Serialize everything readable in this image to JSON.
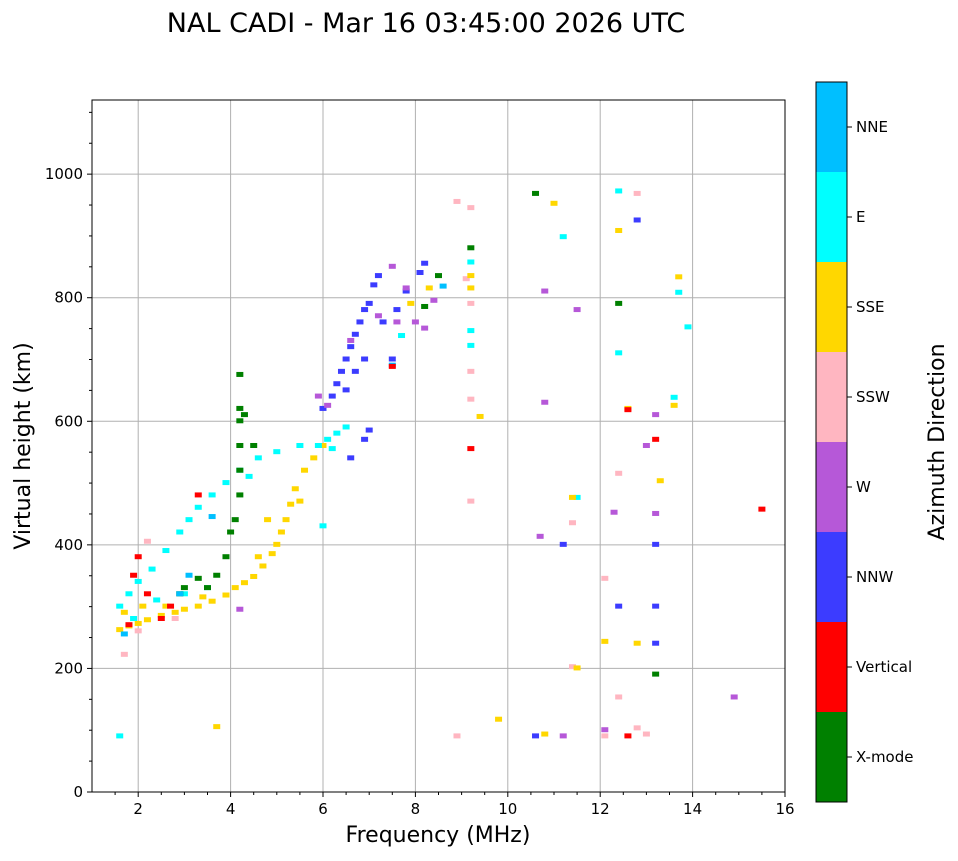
{
  "chart_data": {
    "type": "scatter",
    "title": "NAL CADI - Mar 16 03:45:00 2026 UTC",
    "xlabel": "Frequency (MHz)",
    "ylabel": "Virtual height (km)",
    "xlim": [
      1,
      16
    ],
    "ylim": [
      0,
      1120
    ],
    "xticks": [
      "2",
      "4",
      "6",
      "8",
      "10",
      "12",
      "14",
      "16"
    ],
    "yticks": [
      "0",
      "200",
      "400",
      "600",
      "800",
      "1000"
    ],
    "grid": true,
    "colorbar": {
      "label": "Azimuth Direction",
      "categories": [
        "X-mode",
        "Vertical",
        "NNW",
        "W",
        "SSW",
        "SSE",
        "E",
        "NNE"
      ],
      "colors": [
        "#008000",
        "#ff0000",
        "#3c3cff",
        "#b658d8",
        "#ffb6c1",
        "#ffd700",
        "#00ffff",
        "#00bfff"
      ]
    },
    "points_format": [
      "frequency_mhz",
      "virtual_height_km",
      "direction_index"
    ],
    "points": [
      [
        1.6,
        262,
        5
      ],
      [
        1.8,
        268,
        5
      ],
      [
        2.0,
        272,
        5
      ],
      [
        2.2,
        278,
        5
      ],
      [
        2.5,
        285,
        5
      ],
      [
        2.8,
        290,
        5
      ],
      [
        3.0,
        295,
        5
      ],
      [
        3.3,
        300,
        5
      ],
      [
        3.6,
        308,
        5
      ],
      [
        3.9,
        318,
        5
      ],
      [
        4.1,
        330,
        5
      ],
      [
        4.3,
        338,
        5
      ],
      [
        4.5,
        348,
        5
      ],
      [
        4.7,
        365,
        5
      ],
      [
        4.9,
        385,
        5
      ],
      [
        5.0,
        400,
        5
      ],
      [
        5.1,
        420,
        5
      ],
      [
        5.2,
        440,
        5
      ],
      [
        5.3,
        465,
        5
      ],
      [
        5.4,
        490,
        5
      ],
      [
        5.6,
        520,
        5
      ],
      [
        5.8,
        540,
        5
      ],
      [
        6.0,
        560,
        5
      ],
      [
        1.7,
        290,
        5
      ],
      [
        2.1,
        300,
        5
      ],
      [
        2.6,
        300,
        5
      ],
      [
        3.4,
        315,
        5
      ],
      [
        4.6,
        380,
        5
      ],
      [
        4.8,
        440,
        5
      ],
      [
        5.5,
        470,
        5
      ],
      [
        1.6,
        300,
        6
      ],
      [
        1.8,
        320,
        6
      ],
      [
        2.0,
        340,
        6
      ],
      [
        2.3,
        360,
        6
      ],
      [
        2.6,
        390,
        6
      ],
      [
        2.9,
        420,
        6
      ],
      [
        3.1,
        440,
        6
      ],
      [
        3.3,
        460,
        6
      ],
      [
        3.6,
        480,
        6
      ],
      [
        3.9,
        500,
        6
      ],
      [
        4.2,
        520,
        6
      ],
      [
        4.6,
        540,
        6
      ],
      [
        5.0,
        550,
        6
      ],
      [
        5.5,
        560,
        6
      ],
      [
        5.9,
        560,
        6
      ],
      [
        6.1,
        570,
        6
      ],
      [
        6.3,
        580,
        6
      ],
      [
        6.5,
        590,
        6
      ],
      [
        6.2,
        555,
        6
      ],
      [
        2.4,
        310,
        6
      ],
      [
        3.0,
        320,
        6
      ],
      [
        3.5,
        330,
        6
      ],
      [
        1.9,
        280,
        6
      ],
      [
        4.4,
        510,
        6
      ],
      [
        11.2,
        898,
        6
      ],
      [
        11.5,
        476,
        6
      ],
      [
        13.7,
        808,
        6
      ],
      [
        13.9,
        752,
        6
      ],
      [
        13.6,
        638,
        6
      ],
      [
        12.4,
        710,
        6
      ],
      [
        12.4,
        972,
        6
      ],
      [
        9.2,
        722,
        6
      ],
      [
        9.2,
        746,
        6
      ],
      [
        9.2,
        857,
        6
      ],
      [
        7.7,
        738,
        6
      ],
      [
        6.0,
        430,
        6
      ],
      [
        1.6,
        90,
        6
      ],
      [
        3.5,
        330,
        0
      ],
      [
        3.7,
        350,
        0
      ],
      [
        3.9,
        380,
        0
      ],
      [
        4.0,
        420,
        0
      ],
      [
        4.1,
        440,
        0
      ],
      [
        4.2,
        480,
        0
      ],
      [
        4.2,
        520,
        0
      ],
      [
        4.2,
        560,
        0
      ],
      [
        4.2,
        600,
        0
      ],
      [
        4.2,
        620,
        0
      ],
      [
        4.2,
        675,
        0
      ],
      [
        3.0,
        330,
        0
      ],
      [
        3.3,
        345,
        0
      ],
      [
        2.9,
        320,
        0
      ],
      [
        4.5,
        560,
        0
      ],
      [
        4.3,
        610,
        0
      ],
      [
        10.6,
        968,
        0
      ],
      [
        12.4,
        790,
        0
      ],
      [
        13.2,
        190,
        0
      ],
      [
        9.2,
        880,
        0
      ],
      [
        8.5,
        835,
        0
      ],
      [
        8.2,
        785,
        0
      ],
      [
        6.0,
        620,
        2
      ],
      [
        6.2,
        640,
        2
      ],
      [
        6.3,
        660,
        2
      ],
      [
        6.4,
        680,
        2
      ],
      [
        6.5,
        700,
        2
      ],
      [
        6.6,
        720,
        2
      ],
      [
        6.7,
        740,
        2
      ],
      [
        6.8,
        760,
        2
      ],
      [
        6.9,
        780,
        2
      ],
      [
        7.0,
        790,
        2
      ],
      [
        7.1,
        820,
        2
      ],
      [
        7.2,
        835,
        2
      ],
      [
        6.5,
        650,
        2
      ],
      [
        6.7,
        680,
        2
      ],
      [
        6.9,
        700,
        2
      ],
      [
        7.3,
        760,
        2
      ],
      [
        7.6,
        780,
        2
      ],
      [
        7.8,
        810,
        2
      ],
      [
        8.1,
        840,
        2
      ],
      [
        8.2,
        855,
        2
      ],
      [
        6.6,
        540,
        2
      ],
      [
        6.9,
        570,
        2
      ],
      [
        7.0,
        585,
        2
      ],
      [
        12.8,
        925,
        2
      ],
      [
        12.4,
        300,
        2
      ],
      [
        13.2,
        300,
        2
      ],
      [
        13.2,
        400,
        2
      ],
      [
        13.2,
        240,
        2
      ],
      [
        10.6,
        90,
        2
      ],
      [
        11.2,
        400,
        2
      ],
      [
        7.5,
        700,
        2
      ],
      [
        5.9,
        640,
        3
      ],
      [
        6.1,
        625,
        3
      ],
      [
        6.6,
        730,
        3
      ],
      [
        7.2,
        770,
        3
      ],
      [
        7.6,
        760,
        3
      ],
      [
        8.0,
        760,
        3
      ],
      [
        8.2,
        750,
        3
      ],
      [
        8.4,
        795,
        3
      ],
      [
        7.5,
        850,
        3
      ],
      [
        7.8,
        815,
        3
      ],
      [
        10.8,
        630,
        3
      ],
      [
        10.8,
        810,
        3
      ],
      [
        11.5,
        780,
        3
      ],
      [
        13.2,
        610,
        3
      ],
      [
        13.0,
        560,
        3
      ],
      [
        13.2,
        450,
        3
      ],
      [
        14.9,
        153,
        3
      ],
      [
        11.2,
        90,
        3
      ],
      [
        12.1,
        100,
        3
      ],
      [
        4.2,
        295,
        3
      ],
      [
        12.3,
        452,
        3
      ],
      [
        10.7,
        413,
        3
      ],
      [
        9.2,
        470,
        4
      ],
      [
        9.2,
        635,
        4
      ],
      [
        9.2,
        680,
        4
      ],
      [
        9.2,
        790,
        4
      ],
      [
        9.1,
        830,
        4
      ],
      [
        8.9,
        955,
        4
      ],
      [
        9.2,
        945,
        4
      ],
      [
        12.8,
        968,
        4
      ],
      [
        12.1,
        345,
        4
      ],
      [
        12.4,
        153,
        4
      ],
      [
        12.8,
        103,
        4
      ],
      [
        11.4,
        435,
        4
      ],
      [
        11.4,
        202,
        4
      ],
      [
        12.1,
        90,
        4
      ],
      [
        8.9,
        90,
        4
      ],
      [
        13.0,
        93,
        4
      ],
      [
        12.4,
        515,
        4
      ],
      [
        1.7,
        222,
        4
      ],
      [
        2.2,
        405,
        4
      ],
      [
        2.0,
        260,
        4
      ],
      [
        2.8,
        280,
        4
      ],
      [
        3.7,
        105,
        5
      ],
      [
        9.4,
        607,
        5
      ],
      [
        9.8,
        117,
        5
      ],
      [
        11.0,
        952,
        5
      ],
      [
        12.4,
        908,
        5
      ],
      [
        13.7,
        833,
        5
      ],
      [
        13.6,
        625,
        5
      ],
      [
        13.3,
        503,
        5
      ],
      [
        12.1,
        243,
        5
      ],
      [
        12.8,
        240,
        5
      ],
      [
        11.4,
        476,
        5
      ],
      [
        10.8,
        93,
        5
      ],
      [
        11.5,
        200,
        5
      ],
      [
        9.2,
        815,
        5
      ],
      [
        9.2,
        835,
        5
      ],
      [
        12.6,
        620,
        5
      ],
      [
        8.3,
        815,
        5
      ],
      [
        7.9,
        790,
        5
      ],
      [
        8.6,
        818,
        7
      ],
      [
        7.5,
        690,
        7
      ],
      [
        3.1,
        350,
        7
      ],
      [
        2.9,
        320,
        7
      ],
      [
        1.7,
        255,
        7
      ],
      [
        3.6,
        445,
        7
      ],
      [
        9.2,
        555,
        1
      ],
      [
        13.2,
        570,
        1
      ],
      [
        15.5,
        457,
        1
      ],
      [
        12.6,
        90,
        1
      ],
      [
        12.6,
        618,
        1
      ],
      [
        3.3,
        480,
        1
      ],
      [
        2.5,
        280,
        1
      ],
      [
        2.7,
        300,
        1
      ],
      [
        2.0,
        380,
        1
      ],
      [
        1.8,
        270,
        1
      ],
      [
        7.5,
        688,
        1
      ],
      [
        2.2,
        320,
        1
      ],
      [
        1.9,
        350,
        1
      ]
    ]
  }
}
